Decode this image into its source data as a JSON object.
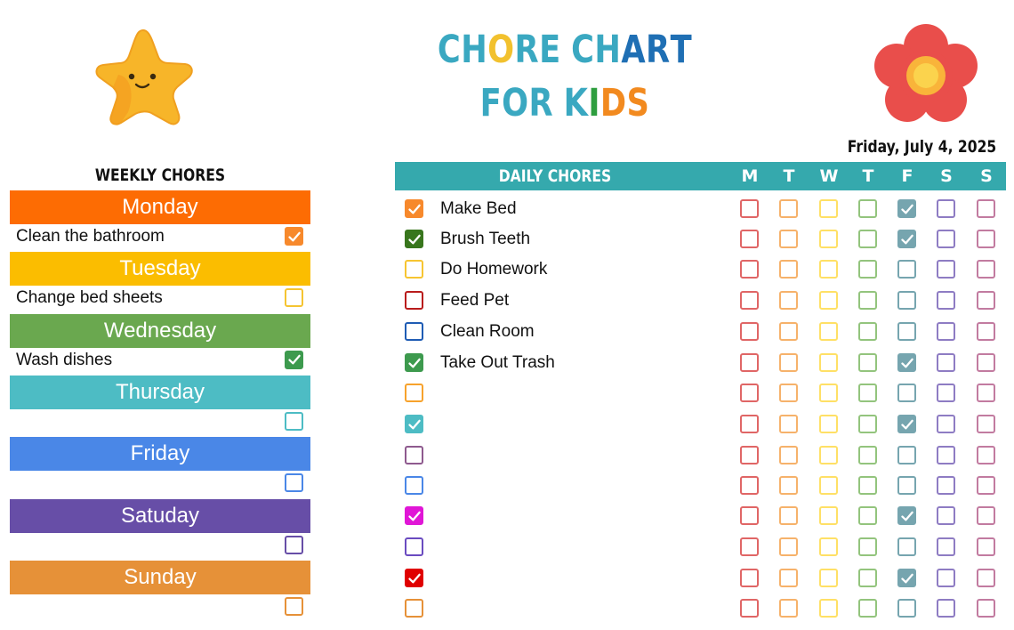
{
  "header": {
    "title_line1": [
      {
        "ch": "C",
        "color": "#3aa8c1"
      },
      {
        "ch": "H",
        "color": "#3aa8c1"
      },
      {
        "ch": "O",
        "color": "#f2c12e"
      },
      {
        "ch": "R",
        "color": "#3aa8c1"
      },
      {
        "ch": "E",
        "color": "#3aa8c1"
      },
      {
        "ch": " ",
        "color": "#3aa8c1"
      },
      {
        "ch": "C",
        "color": "#3aa8c1"
      },
      {
        "ch": "H",
        "color": "#3aa8c1"
      },
      {
        "ch": "A",
        "color": "#1f6fb4"
      },
      {
        "ch": "R",
        "color": "#1f6fb4"
      },
      {
        "ch": "T",
        "color": "#1f6fb4"
      }
    ],
    "title_line2": [
      {
        "ch": "F",
        "color": "#3aa8c1"
      },
      {
        "ch": "O",
        "color": "#3aa8c1"
      },
      {
        "ch": "R",
        "color": "#3aa8c1"
      },
      {
        "ch": " ",
        "color": "#3aa8c1"
      },
      {
        "ch": "K",
        "color": "#3aa8c1"
      },
      {
        "ch": "I",
        "color": "#2e9e3f"
      },
      {
        "ch": "D",
        "color": "#f28a1f"
      },
      {
        "ch": "S",
        "color": "#f28a1f"
      }
    ],
    "date": "Friday, July 4, 2025",
    "decorations": [
      "star-icon",
      "flower-icon"
    ]
  },
  "weekly": {
    "title": "WEEKLY CHORES",
    "days": [
      {
        "name": "Monday",
        "color": "#fd6c03",
        "task": "Clean the bathroom",
        "cb_color": "#f7892c",
        "checked": true
      },
      {
        "name": "Tuesday",
        "color": "#fbbd00",
        "task": "Change bed sheets",
        "cb_color": "#f5c431",
        "checked": false
      },
      {
        "name": "Wednesday",
        "color": "#6aa84f",
        "task": "Wash dishes",
        "cb_color": "#3d9a4e",
        "checked": true
      },
      {
        "name": "Thursday",
        "color": "#4dbcc4",
        "task": "",
        "cb_color": "#4dbcc4",
        "checked": false
      },
      {
        "name": "Friday",
        "color": "#4a87e7",
        "task": "",
        "cb_color": "#4a87e7",
        "checked": false
      },
      {
        "name": "Satuday",
        "color": "#674ea7",
        "task": "",
        "cb_color": "#674ea7",
        "checked": false
      },
      {
        "name": "Sunday",
        "color": "#e69138",
        "task": "",
        "cb_color": "#e69138",
        "checked": false
      }
    ]
  },
  "daily": {
    "title": "DAILY CHORES",
    "day_headers": [
      "M",
      "T",
      "W",
      "T",
      "F",
      "S",
      "S"
    ],
    "grid_colors": [
      "#e06666",
      "#f6b26b",
      "#ffe066",
      "#93c47d",
      "#76a5af",
      "#8e7cc3",
      "#c27ba0"
    ],
    "checked_fill": "#76a5af",
    "rows": [
      {
        "label": "Make Bed",
        "cb_color": "#f7892c",
        "checked": true,
        "grid": [
          false,
          false,
          false,
          false,
          true,
          false,
          false
        ]
      },
      {
        "label": "Brush Teeth",
        "cb_color": "#38761d",
        "checked": true,
        "grid": [
          false,
          false,
          false,
          false,
          true,
          false,
          false
        ]
      },
      {
        "label": "Do Homework",
        "cb_color": "#f7c531",
        "checked": false,
        "grid": [
          false,
          false,
          false,
          false,
          false,
          false,
          false
        ]
      },
      {
        "label": "Feed Pet",
        "cb_color": "#b91c1c",
        "checked": false,
        "grid": [
          false,
          false,
          false,
          false,
          false,
          false,
          false
        ]
      },
      {
        "label": "Clean Room",
        "cb_color": "#1f5cb4",
        "checked": false,
        "grid": [
          false,
          false,
          false,
          false,
          false,
          false,
          false
        ]
      },
      {
        "label": "Take Out Trash",
        "cb_color": "#3d9a4e",
        "checked": true,
        "grid": [
          false,
          false,
          false,
          false,
          true,
          false,
          false
        ]
      },
      {
        "label": "",
        "cb_color": "#f7a22c",
        "checked": false,
        "grid": [
          false,
          false,
          false,
          false,
          false,
          false,
          false
        ]
      },
      {
        "label": "",
        "cb_color": "#4dbcc4",
        "checked": true,
        "grid": [
          false,
          false,
          false,
          false,
          true,
          false,
          false
        ]
      },
      {
        "label": "",
        "cb_color": "#8e5a8e",
        "checked": false,
        "grid": [
          false,
          false,
          false,
          false,
          false,
          false,
          false
        ]
      },
      {
        "label": "",
        "cb_color": "#4a87e7",
        "checked": false,
        "grid": [
          false,
          false,
          false,
          false,
          false,
          false,
          false
        ]
      },
      {
        "label": "",
        "cb_color": "#e016d6",
        "checked": true,
        "grid": [
          false,
          false,
          false,
          false,
          true,
          false,
          false
        ]
      },
      {
        "label": "",
        "cb_color": "#6a4bc0",
        "checked": false,
        "grid": [
          false,
          false,
          false,
          false,
          false,
          false,
          false
        ]
      },
      {
        "label": "",
        "cb_color": "#e00000",
        "checked": true,
        "grid": [
          false,
          false,
          false,
          false,
          true,
          false,
          false
        ]
      },
      {
        "label": "",
        "cb_color": "#e69138",
        "checked": false,
        "grid": [
          false,
          false,
          false,
          false,
          false,
          false,
          false
        ]
      }
    ]
  }
}
